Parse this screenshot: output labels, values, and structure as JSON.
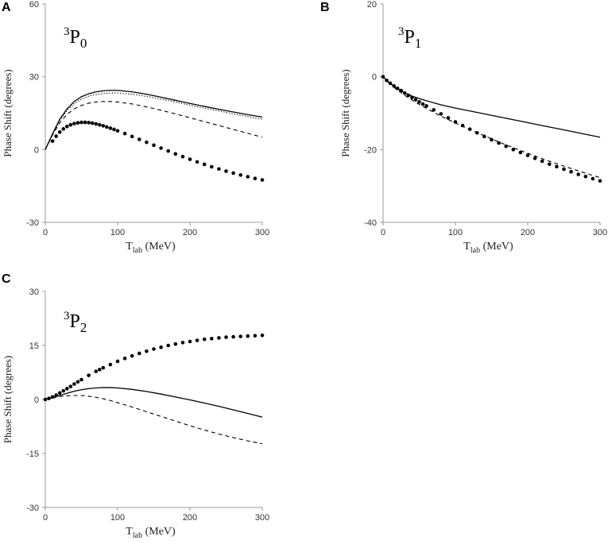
{
  "chart_data": [
    {
      "type": "line",
      "panel": "A",
      "wave_sup": "3",
      "wave_main": "P",
      "wave_sub": "0",
      "xlabel_main": "T",
      "xlabel_sub": "lab",
      "xlabel_unit": " (MeV)",
      "ylabel": "Phase Shift (degrees)",
      "xlim": [
        0,
        300
      ],
      "ylim": [
        -30,
        60
      ],
      "xticks": [
        0,
        100,
        200,
        300
      ],
      "yticks": [
        -30,
        0,
        30,
        60
      ],
      "series": [
        {
          "name": "solid",
          "style": "solid",
          "x": [
            0,
            10,
            20,
            30,
            40,
            50,
            60,
            70,
            80,
            90,
            100,
            120,
            140,
            160,
            180,
            200,
            220,
            240,
            260,
            280,
            300
          ],
          "y": [
            0,
            6.5,
            12.5,
            16.8,
            19.8,
            21.8,
            23.0,
            23.8,
            24.2,
            24.4,
            24.4,
            23.8,
            22.8,
            21.6,
            20.3,
            19.0,
            17.8,
            16.6,
            15.5,
            14.4,
            13.4
          ]
        },
        {
          "name": "dotted",
          "style": "dotted",
          "x": [
            0,
            10,
            20,
            30,
            40,
            50,
            60,
            70,
            80,
            90,
            100,
            120,
            140,
            160,
            180,
            200,
            220,
            240,
            260,
            280,
            300
          ],
          "y": [
            0,
            6.3,
            12.0,
            16.0,
            18.9,
            20.8,
            22.0,
            22.7,
            23.1,
            23.3,
            23.3,
            22.8,
            21.9,
            20.8,
            19.6,
            18.3,
            17.1,
            15.9,
            14.7,
            13.6,
            12.5
          ]
        },
        {
          "name": "dashed",
          "style": "dashed",
          "x": [
            0,
            10,
            20,
            30,
            40,
            50,
            60,
            70,
            80,
            90,
            100,
            120,
            140,
            160,
            180,
            200,
            220,
            240,
            260,
            280,
            300
          ],
          "y": [
            0,
            6.0,
            11.0,
            14.5,
            16.8,
            18.2,
            19.1,
            19.6,
            19.8,
            19.8,
            19.6,
            18.8,
            17.6,
            16.2,
            14.7,
            13.1,
            11.5,
            9.9,
            8.3,
            6.7,
            5.1
          ]
        },
        {
          "name": "points",
          "style": "points",
          "x": [
            10,
            15,
            20,
            25,
            30,
            35,
            40,
            45,
            50,
            55,
            60,
            65,
            70,
            75,
            80,
            85,
            90,
            95,
            100,
            110,
            120,
            130,
            140,
            150,
            160,
            170,
            180,
            190,
            200,
            210,
            220,
            230,
            240,
            250,
            260,
            270,
            280,
            290,
            300
          ],
          "y": [
            3.5,
            5.5,
            7.2,
            8.5,
            9.5,
            10.2,
            10.7,
            11.0,
            11.2,
            11.2,
            11.1,
            10.9,
            10.6,
            10.2,
            9.8,
            9.3,
            8.8,
            8.3,
            7.7,
            6.6,
            5.4,
            4.2,
            3.0,
            1.8,
            0.6,
            -0.6,
            -1.8,
            -2.9,
            -4.0,
            -5.1,
            -6.1,
            -7.1,
            -8.0,
            -8.9,
            -9.7,
            -10.5,
            -11.2,
            -11.9,
            -12.5
          ]
        }
      ]
    },
    {
      "type": "line",
      "panel": "B",
      "wave_sup": "3",
      "wave_main": "P",
      "wave_sub": "1",
      "xlabel_main": "T",
      "xlabel_sub": "lab",
      "xlabel_unit": " (MeV)",
      "ylabel": "Phase Shift (degrees)",
      "xlim": [
        0,
        300
      ],
      "ylim": [
        -40,
        20
      ],
      "xticks": [
        0,
        100,
        200,
        300
      ],
      "yticks": [
        -40,
        -20,
        0,
        20
      ],
      "series": [
        {
          "name": "solid",
          "style": "solid",
          "x": [
            0,
            10,
            20,
            30,
            40,
            50,
            60,
            80,
            100,
            120,
            140,
            160,
            180,
            200,
            220,
            240,
            260,
            280,
            300
          ],
          "y": [
            0,
            -1.9,
            -3.3,
            -4.4,
            -5.3,
            -6.0,
            -6.6,
            -7.7,
            -8.6,
            -9.4,
            -10.2,
            -11.0,
            -11.8,
            -12.6,
            -13.4,
            -14.2,
            -15.0,
            -15.8,
            -16.6
          ]
        },
        {
          "name": "dashed",
          "style": "dashed",
          "x": [
            0,
            10,
            20,
            30,
            40,
            50,
            60,
            80,
            100,
            120,
            140,
            160,
            180,
            200,
            220,
            240,
            260,
            280,
            300
          ],
          "y": [
            0,
            -2.1,
            -3.7,
            -5.1,
            -6.4,
            -7.6,
            -8.7,
            -10.8,
            -12.7,
            -14.5,
            -16.2,
            -17.9,
            -19.5,
            -21.0,
            -22.5,
            -23.9,
            -25.2,
            -26.5,
            -27.7
          ]
        },
        {
          "name": "points",
          "style": "points",
          "x": [
            0,
            5,
            10,
            15,
            20,
            25,
            30,
            35,
            40,
            45,
            50,
            55,
            60,
            70,
            80,
            90,
            100,
            110,
            120,
            130,
            140,
            150,
            160,
            170,
            180,
            190,
            200,
            210,
            220,
            230,
            240,
            250,
            260,
            270,
            280,
            290,
            300
          ],
          "y": [
            0,
            -1.0,
            -1.8,
            -2.5,
            -3.2,
            -3.8,
            -4.5,
            -5.1,
            -5.7,
            -6.3,
            -6.9,
            -7.5,
            -8.0,
            -9.1,
            -10.2,
            -11.3,
            -12.4,
            -13.4,
            -14.4,
            -15.4,
            -16.4,
            -17.3,
            -18.2,
            -19.1,
            -20.0,
            -20.8,
            -21.6,
            -22.4,
            -23.2,
            -24.0,
            -24.7,
            -25.4,
            -26.1,
            -26.8,
            -27.4,
            -28.0,
            -28.6
          ]
        }
      ]
    },
    {
      "type": "line",
      "panel": "C",
      "wave_sup": "3",
      "wave_main": "P",
      "wave_sub": "2",
      "xlabel_main": "T",
      "xlabel_sub": "lab",
      "xlabel_unit": " (MeV)",
      "ylabel": "Phase Shift (degrees)",
      "xlim": [
        0,
        300
      ],
      "ylim": [
        -30,
        30
      ],
      "xticks": [
        0,
        100,
        200,
        300
      ],
      "yticks": [
        -30,
        -15,
        0,
        15,
        30
      ],
      "series": [
        {
          "name": "solid",
          "style": "solid",
          "x": [
            0,
            10,
            20,
            30,
            40,
            50,
            60,
            70,
            80,
            90,
            100,
            120,
            140,
            160,
            180,
            200,
            220,
            240,
            260,
            280,
            300
          ],
          "y": [
            0,
            0.5,
            1.1,
            1.7,
            2.3,
            2.7,
            3.0,
            3.2,
            3.3,
            3.3,
            3.2,
            2.8,
            2.2,
            1.5,
            0.7,
            -0.1,
            -1.0,
            -1.9,
            -2.9,
            -3.9,
            -4.9
          ]
        },
        {
          "name": "dashed",
          "style": "dashed",
          "x": [
            0,
            10,
            20,
            30,
            40,
            50,
            60,
            70,
            80,
            90,
            100,
            120,
            140,
            160,
            180,
            200,
            220,
            240,
            260,
            280,
            300
          ],
          "y": [
            0,
            0.4,
            0.8,
            1.0,
            1.1,
            1.1,
            0.9,
            0.6,
            0.2,
            -0.3,
            -0.9,
            -2.1,
            -3.4,
            -4.7,
            -6.0,
            -7.3,
            -8.5,
            -9.6,
            -10.6,
            -11.5,
            -12.3
          ]
        },
        {
          "name": "points",
          "style": "points",
          "x": [
            0,
            5,
            10,
            15,
            20,
            25,
            30,
            35,
            40,
            45,
            50,
            60,
            70,
            75,
            80,
            90,
            100,
            110,
            120,
            130,
            140,
            150,
            160,
            170,
            180,
            190,
            200,
            210,
            220,
            230,
            240,
            250,
            260,
            270,
            280,
            290,
            300
          ],
          "y": [
            0,
            0.3,
            0.7,
            1.2,
            1.8,
            2.4,
            3.0,
            3.6,
            4.3,
            4.9,
            5.5,
            6.7,
            7.8,
            8.3,
            8.8,
            9.7,
            10.6,
            11.4,
            12.1,
            12.8,
            13.4,
            14.0,
            14.5,
            15.0,
            15.4,
            15.8,
            16.1,
            16.4,
            16.7,
            16.9,
            17.1,
            17.3,
            17.4,
            17.5,
            17.6,
            17.7,
            17.8
          ]
        }
      ]
    }
  ]
}
